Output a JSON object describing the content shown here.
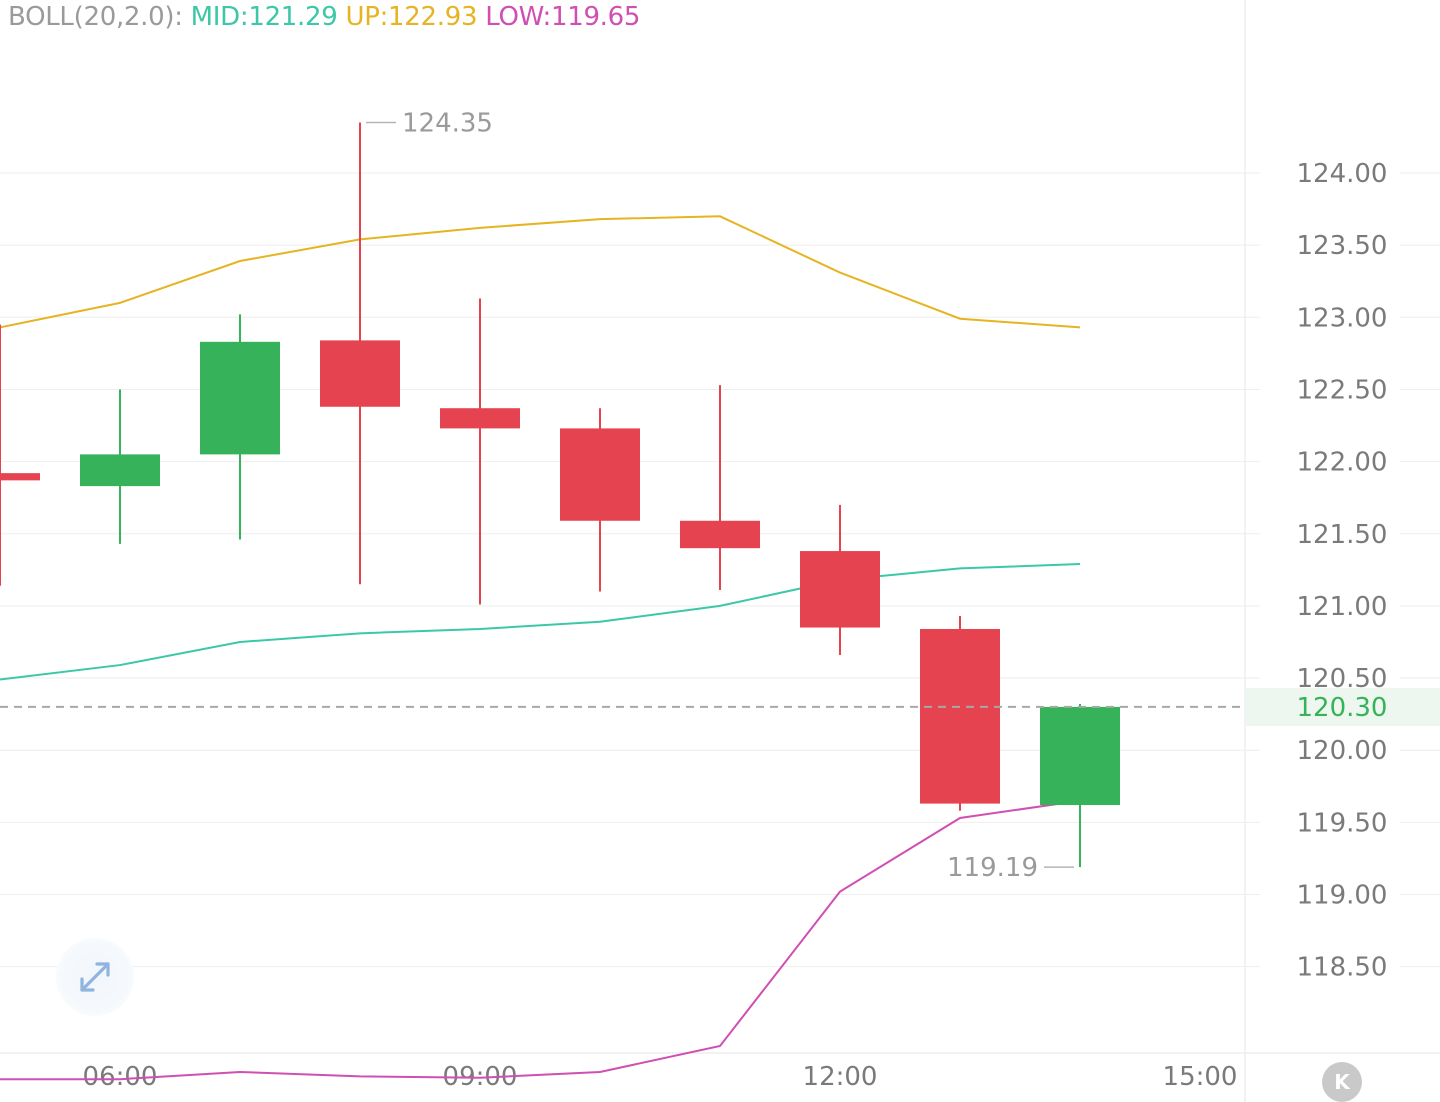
{
  "legend": {
    "indicator": "BOLL(20,2.0):",
    "mid_label": "MID:121.29",
    "up_label": "UP:122.93",
    "low_label": "LOW:119.65"
  },
  "colors": {
    "up_candle": "#36b25a",
    "down_candle": "#e5434f",
    "mid_line": "#3cc7a7",
    "upper_line": "#e6b422",
    "lower_line": "#d04fb2",
    "grid": "#eeeeee",
    "axis_text": "#7a7a7a",
    "current_price_text": "#36b25a"
  },
  "icons": {
    "expand": "expand-arrows-icon",
    "kline": "k-letter-icon"
  },
  "chart_data": {
    "type": "candlestick",
    "x_tick_labels": [
      "06:00",
      "09:00",
      "12:00",
      "15:00"
    ],
    "y_tick_labels": [
      "124.00",
      "123.50",
      "123.00",
      "122.50",
      "122.00",
      "121.50",
      "121.00",
      "120.50",
      "120.00",
      "119.50",
      "119.00",
      "118.50"
    ],
    "ylim": [
      117.6,
      124.9
    ],
    "grid": true,
    "current_price": "120.30",
    "annotations": {
      "high": "124.35",
      "low": "119.19"
    },
    "candles": [
      {
        "time": "05:00",
        "open": 121.92,
        "high": 122.95,
        "low": 121.14,
        "close": 121.87
      },
      {
        "time": "06:00",
        "open": 121.83,
        "high": 122.5,
        "low": 121.43,
        "close": 122.05
      },
      {
        "time": "07:00",
        "open": 122.05,
        "high": 123.02,
        "low": 121.46,
        "close": 122.83
      },
      {
        "time": "08:00",
        "open": 122.84,
        "high": 124.35,
        "low": 121.15,
        "close": 122.38
      },
      {
        "time": "09:00",
        "open": 122.37,
        "high": 123.13,
        "low": 121.01,
        "close": 122.23
      },
      {
        "time": "10:00",
        "open": 122.23,
        "high": 122.37,
        "low": 121.1,
        "close": 121.59
      },
      {
        "time": "11:00",
        "open": 121.59,
        "high": 122.53,
        "low": 121.11,
        "close": 121.4
      },
      {
        "time": "12:00",
        "open": 121.38,
        "high": 121.7,
        "low": 120.66,
        "close": 120.85
      },
      {
        "time": "13:00",
        "open": 120.84,
        "high": 120.93,
        "low": 119.58,
        "close": 119.63
      },
      {
        "time": "14:00",
        "open": 119.62,
        "high": 120.32,
        "low": 119.19,
        "close": 120.3
      }
    ],
    "series": [
      {
        "name": "UP",
        "values": [
          122.93,
          123.1,
          123.39,
          123.54,
          123.62,
          123.68,
          123.7,
          123.31,
          122.99,
          122.93
        ]
      },
      {
        "name": "MID",
        "values": [
          120.49,
          120.59,
          120.75,
          120.81,
          120.84,
          120.89,
          121.0,
          121.18,
          121.26,
          121.29
        ]
      },
      {
        "name": "LOW",
        "values": [
          117.72,
          117.72,
          117.77,
          117.74,
          117.73,
          117.77,
          117.95,
          119.02,
          119.53,
          119.65
        ]
      }
    ]
  }
}
